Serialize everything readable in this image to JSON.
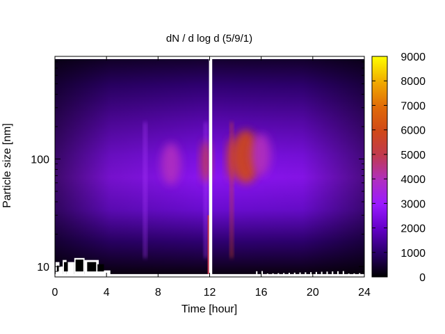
{
  "chart_data": {
    "type": "heatmap",
    "title": "dN / d log d (5/9/1)",
    "xlabel": "Time [hour]",
    "ylabel": "Particle size [nm]",
    "x_ticks": [
      0,
      4,
      8,
      12,
      16,
      20,
      24
    ],
    "xlim": [
      0,
      24
    ],
    "y_scale": "log",
    "y_ticks": [
      10,
      100
    ],
    "ylim": [
      8,
      900
    ],
    "data_max_size_nm": 850,
    "data_min_size_nm": 8.5,
    "colorbar": {
      "ticks": [
        0,
        1000,
        2000,
        3000,
        4000,
        5000,
        6000,
        7000,
        8000,
        9000
      ],
      "range": [
        0,
        9000
      ],
      "palette": [
        "#000000",
        "#2a006a",
        "#6400c8",
        "#9a1aff",
        "#b02fc0",
        "#c03a50",
        "#d04818",
        "#e06a08",
        "#f0a800",
        "#ffff00"
      ]
    },
    "data_gap_hours": [
      11.95,
      12.2
    ],
    "features": [
      {
        "time_hour": 9.0,
        "size_nm": 90,
        "value": 3600
      },
      {
        "time_hour": 11.7,
        "size_nm": 95,
        "value": 4700
      },
      {
        "time_hour": 13.7,
        "size_nm": 100,
        "value": 5000
      },
      {
        "time_hour": 14.8,
        "size_nm": 105,
        "value": 5800
      },
      {
        "time_hour": 16.0,
        "size_nm": 110,
        "value": 4000
      }
    ]
  }
}
